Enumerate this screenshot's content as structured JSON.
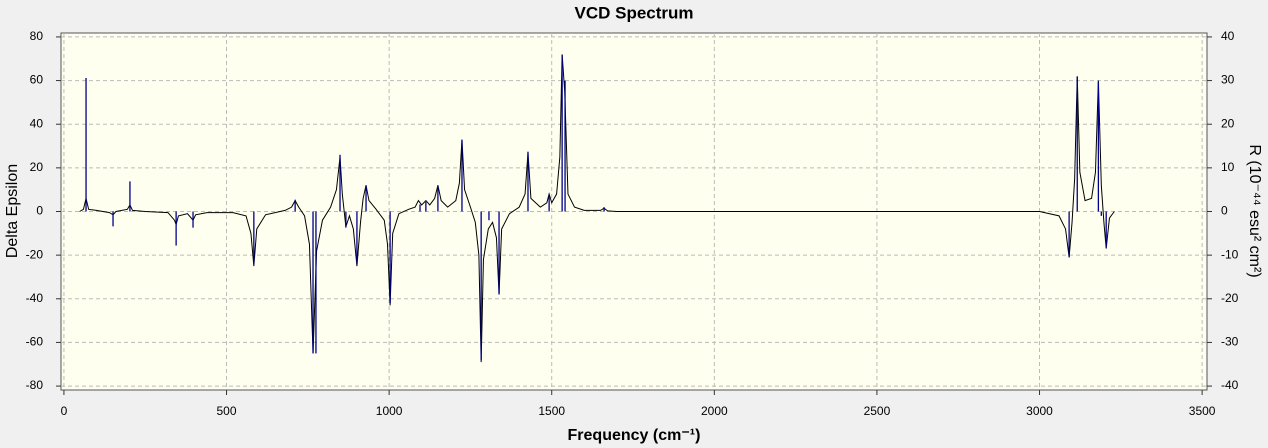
{
  "chart_data": {
    "type": "line",
    "title": "VCD Spectrum",
    "x_label": "Frequency (cm⁻¹)",
    "y_label": "Delta Epsilon",
    "y2_label": "R (10⁻⁴⁴ esu² cm²)",
    "xlim": [
      -9,
      3515
    ],
    "xticks": [
      0,
      500,
      1000,
      1500,
      2000,
      2500,
      3000,
      3500
    ],
    "ylim": [
      -81.8,
      81.8
    ],
    "yticks": [
      -80,
      -60,
      -40,
      -20,
      0,
      20,
      40,
      60,
      80
    ],
    "y2lim": [
      -40.9,
      40.9
    ],
    "y2ticks": [
      -40,
      -30,
      -20,
      -10,
      0,
      10,
      20,
      30,
      40
    ],
    "grid": true,
    "series": [
      {
        "type": "line",
        "color": "#000000",
        "x": [
          48,
          60,
          68,
          76,
          100,
          140,
          151,
          160,
          195,
          203,
          211,
          250,
          320,
          340,
          345,
          352,
          380,
          397,
          405,
          440,
          520,
          560,
          575,
          584,
          593,
          620,
          680,
          700,
          711,
          722,
          740,
          755,
          766,
          777,
          795,
          820,
          838,
          849,
          856,
          867,
          878,
          890,
          901,
          912,
          920,
          929,
          938,
          960,
          985,
          995,
          1003,
          1011,
          1030,
          1060,
          1080,
          1090,
          1100,
          1113,
          1125,
          1140,
          1150,
          1160,
          1180,
          1205,
          1216,
          1224,
          1232,
          1250,
          1265,
          1276,
          1283,
          1290,
          1305,
          1318,
          1330,
          1338,
          1346,
          1370,
          1400,
          1418,
          1427,
          1436,
          1465,
          1485,
          1492,
          1500,
          1515,
          1525,
          1532,
          1540,
          1550,
          1570,
          1600,
          1650,
          1661,
          1672,
          1700,
          3000,
          3060,
          3080,
          3091,
          3100,
          3108,
          3116,
          3124,
          3140,
          3160,
          3172,
          3181,
          3190,
          3198,
          3205,
          3215,
          3230
        ],
        "values": [
          0,
          1,
          6,
          1,
          0.5,
          -0.5,
          -1.5,
          0,
          1,
          3,
          0.5,
          0,
          -0.5,
          -4,
          -6,
          -2,
          -1,
          -4,
          -1.5,
          -0.5,
          -0.5,
          -2,
          -10,
          -25,
          -8,
          -1.5,
          0.5,
          2,
          5,
          2,
          -2,
          -15,
          -65,
          -18,
          -4,
          2,
          10,
          25,
          8,
          -7,
          -2,
          -8,
          -25,
          -5,
          6,
          12,
          5,
          1,
          -4,
          -15,
          -43,
          -10,
          -1,
          1,
          2,
          5,
          3,
          5,
          3,
          6,
          12,
          5,
          2,
          5,
          13,
          33,
          10,
          2,
          -5,
          -20,
          -69,
          -22,
          -8,
          -5,
          -12,
          -38,
          -8,
          -1,
          2,
          8,
          27,
          6,
          2,
          4,
          8,
          4,
          8,
          25,
          72,
          55,
          8,
          2,
          0.5,
          0.5,
          1.5,
          0.3,
          0,
          0,
          -2,
          -8,
          -21,
          -5,
          15,
          62,
          18,
          5,
          6,
          18,
          60,
          12,
          -5,
          -17,
          -3,
          0
        ]
      },
      {
        "type": "stem",
        "axis": "y2",
        "color": "#00008b",
        "x": [
          68,
          151,
          203,
          345,
          397,
          584,
          711,
          766,
          775,
          849,
          867,
          901,
          929,
          1003,
          1095,
          1113,
          1150,
          1224,
          1283,
          1307,
          1338,
          1427,
          1492,
          1532,
          1541,
          1661,
          3091,
          3116,
          3181,
          3190,
          3205
        ],
        "values": [
          30.6,
          -3.4,
          6.9,
          -7.8,
          -3.7,
          -12,
          2.7,
          -32.5,
          -32.5,
          13,
          -3.7,
          -12,
          6,
          -21,
          1.6,
          2.2,
          6,
          16.4,
          -34,
          -2,
          -19,
          13.7,
          3.9,
          35.9,
          30,
          1,
          -10.5,
          30.9,
          29.7,
          -1,
          -8.2
        ]
      }
    ]
  }
}
